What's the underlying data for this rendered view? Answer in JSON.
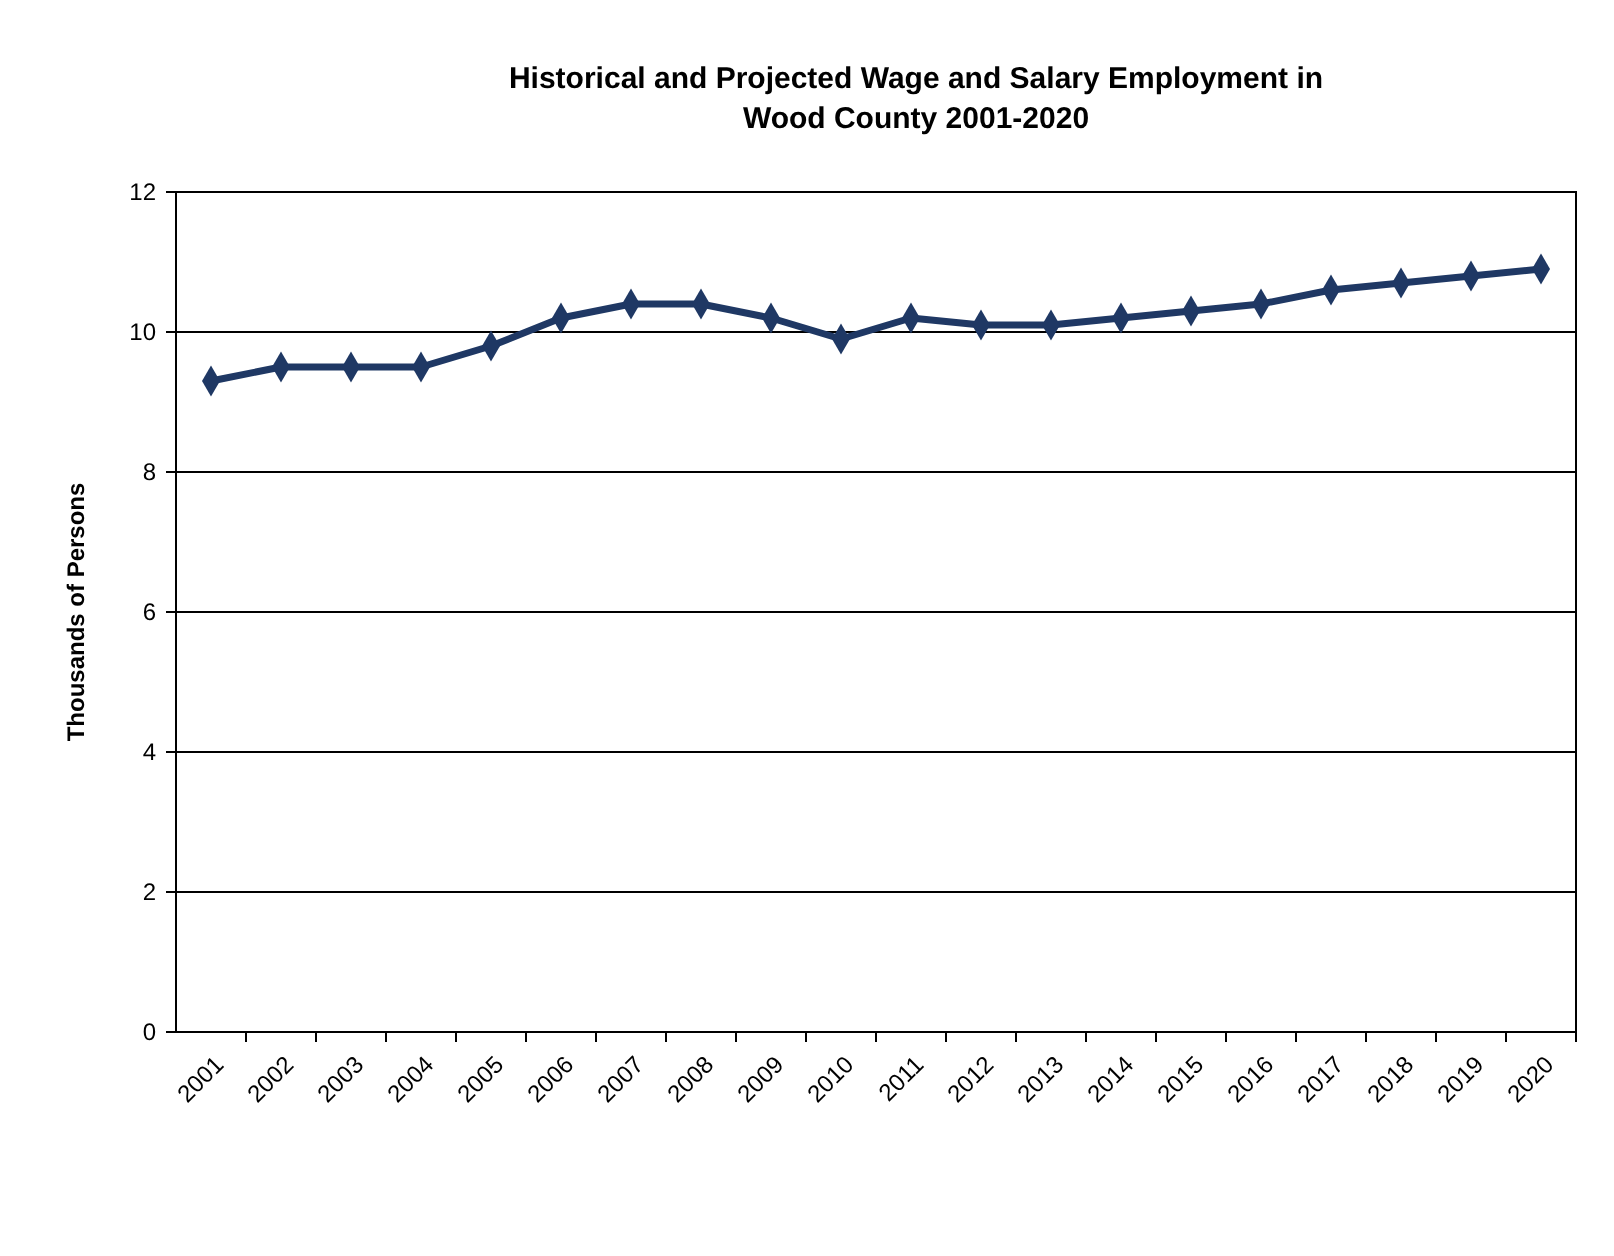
{
  "chart_data": {
    "type": "line",
    "title": "Historical and Projected Wage and Salary Employment in\nWood County 2001-2020",
    "ylabel": "Thousands of Persons",
    "categories": [
      "2001",
      "2002",
      "2003",
      "2004",
      "2005",
      "2006",
      "2007",
      "2008",
      "2009",
      "2010",
      "2011",
      "2012",
      "2013",
      "2014",
      "2015",
      "2016",
      "2017",
      "2018",
      "2019",
      "2020"
    ],
    "series": [
      {
        "color": "#1f3864",
        "values": [
          9.3,
          9.5,
          9.5,
          9.5,
          9.8,
          10.2,
          10.4,
          10.4,
          10.2,
          9.9,
          10.2,
          10.1,
          10.1,
          10.2,
          10.3,
          10.4,
          10.6,
          10.7,
          10.8,
          10.9
        ]
      }
    ],
    "ylim": [
      0,
      12
    ],
    "yticks": [
      0,
      2,
      4,
      6,
      8,
      10,
      12
    ],
    "grid": "y",
    "marker": "diamond",
    "line_style": "solid"
  }
}
